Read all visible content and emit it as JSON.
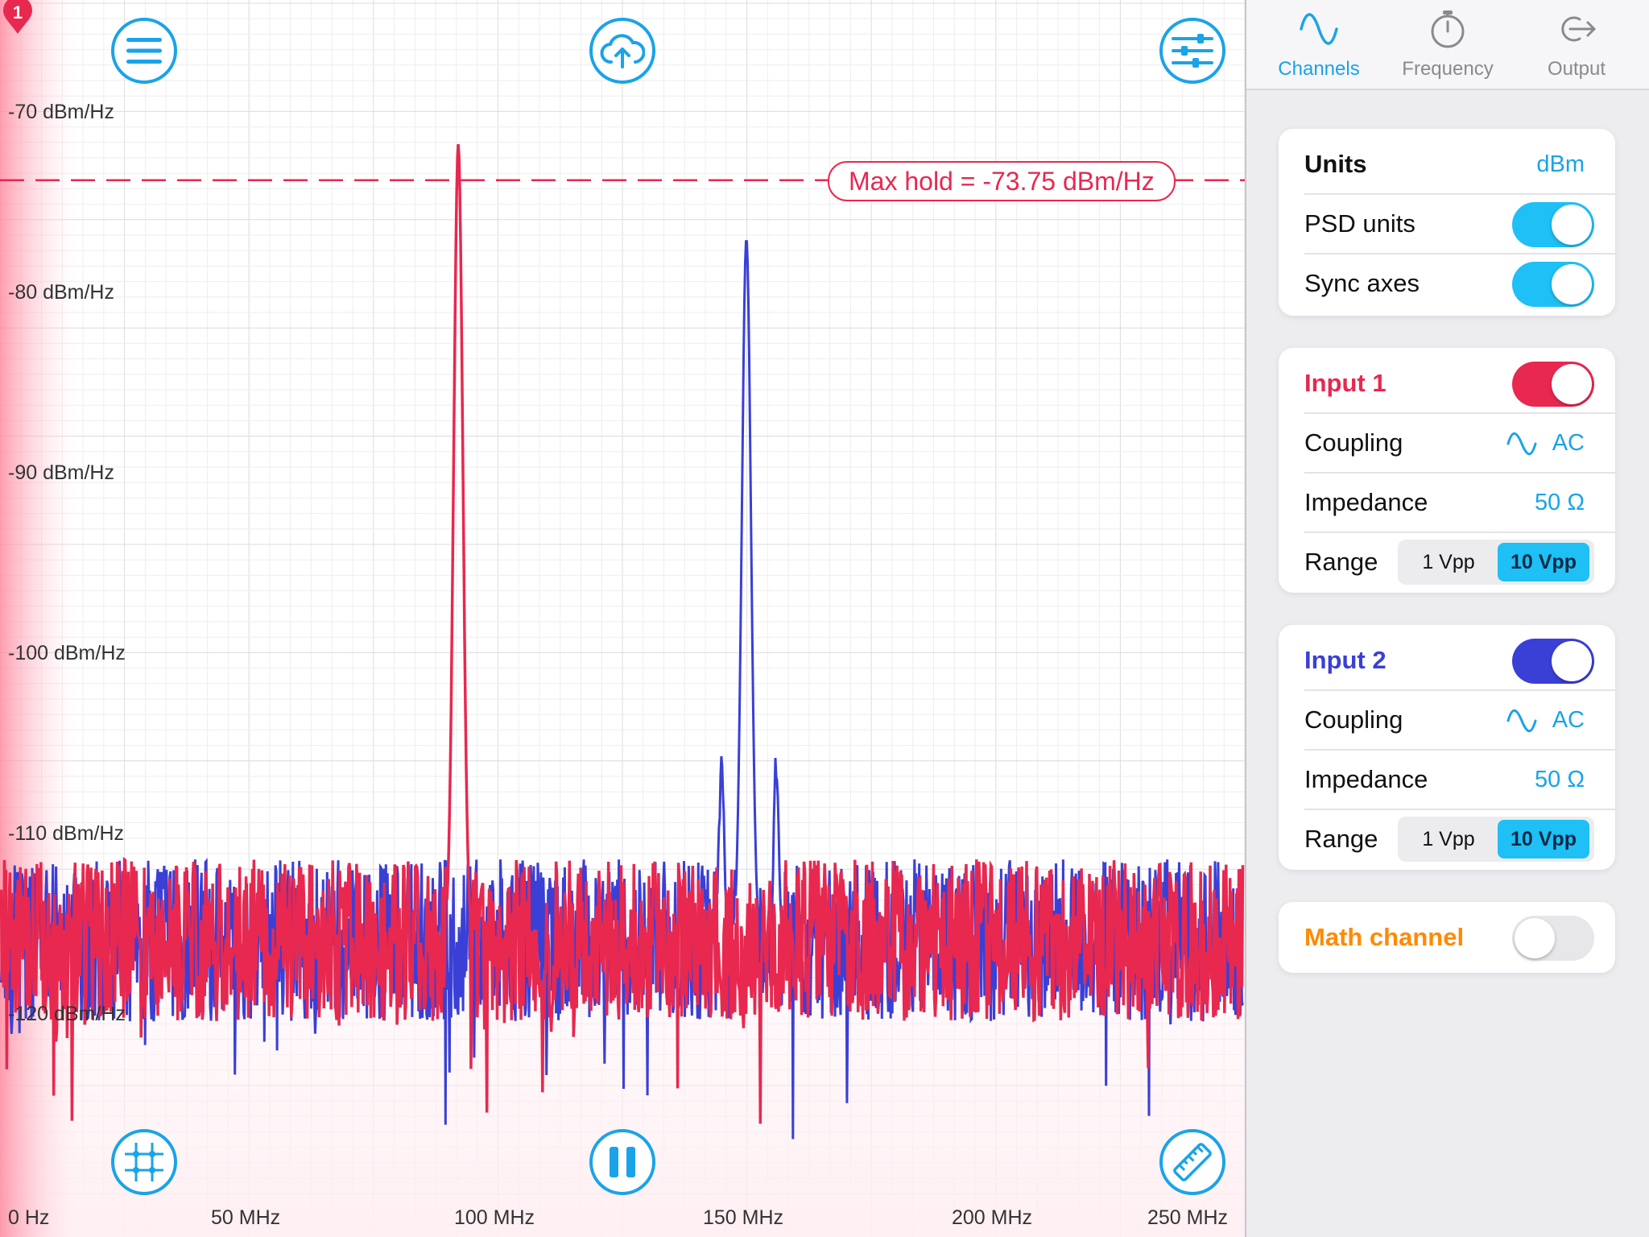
{
  "plot": {
    "marker_badge": "1",
    "y_axis_labels": [
      "-70 dBm/Hz",
      "-80 dBm/Hz",
      "-90 dBm/Hz",
      "-100 dBm/Hz",
      "-110 dBm/Hz",
      "-120 dBm/Hz"
    ],
    "x_axis_labels": [
      "0 Hz",
      "50 MHz",
      "100 MHz",
      "150 MHz",
      "200 MHz",
      "250 MHz"
    ],
    "max_hold_label": "Max hold = -73.75 dBm/Hz",
    "colors": {
      "input1": "#e8284f",
      "input2": "#3a3fd6",
      "accent": "#1aa3e8",
      "math": "#ff8a00"
    },
    "buttons": {
      "menu": "menu-icon",
      "upload": "cloud-upload-icon",
      "settings": "sliders-icon",
      "grid": "grid-crosshair-icon",
      "pause": "pause-icon",
      "measure": "ruler-icon"
    }
  },
  "chart_data": {
    "type": "line",
    "x_range_mhz": [
      0,
      250
    ],
    "ylim": [
      -127,
      -68
    ],
    "grid": true,
    "series": [
      {
        "name": "Input 1",
        "color": "#e8284f",
        "noise_floor": -116,
        "peak_x": 92,
        "peak_y": -73.75
      },
      {
        "name": "Input 2",
        "color": "#3a3fd6",
        "noise_floor": -116,
        "peak_x": 150,
        "peak_y": -79,
        "sidebands": [
          {
            "x": 145,
            "y": -107
          },
          {
            "x": 156,
            "y": -107
          }
        ]
      }
    ],
    "max_hold_y": -73.75
  },
  "tabs": [
    {
      "label": "Channels",
      "icon": "sine-wave-icon",
      "active": true
    },
    {
      "label": "Frequency",
      "icon": "stopwatch-icon",
      "active": false
    },
    {
      "label": "Output",
      "icon": "output-arrow-icon",
      "active": false
    }
  ],
  "units_card": {
    "title": "Units",
    "value": "dBm",
    "psd_label": "PSD units",
    "psd_on": true,
    "sync_label": "Sync axes",
    "sync_on": true
  },
  "input1": {
    "title": "Input 1",
    "enabled": true,
    "coupling_label": "Coupling",
    "coupling_value": "AC",
    "impedance_label": "Impedance",
    "impedance_value": "50 Ω",
    "range_label": "Range",
    "range_options": [
      "1 Vpp",
      "10 Vpp"
    ],
    "range_selected": "10 Vpp"
  },
  "input2": {
    "title": "Input 2",
    "enabled": true,
    "coupling_label": "Coupling",
    "coupling_value": "AC",
    "impedance_label": "Impedance",
    "impedance_value": "50 Ω",
    "range_label": "Range",
    "range_options": [
      "1 Vpp",
      "10 Vpp"
    ],
    "range_selected": "10 Vpp"
  },
  "math_card": {
    "title": "Math channel",
    "enabled": false
  }
}
